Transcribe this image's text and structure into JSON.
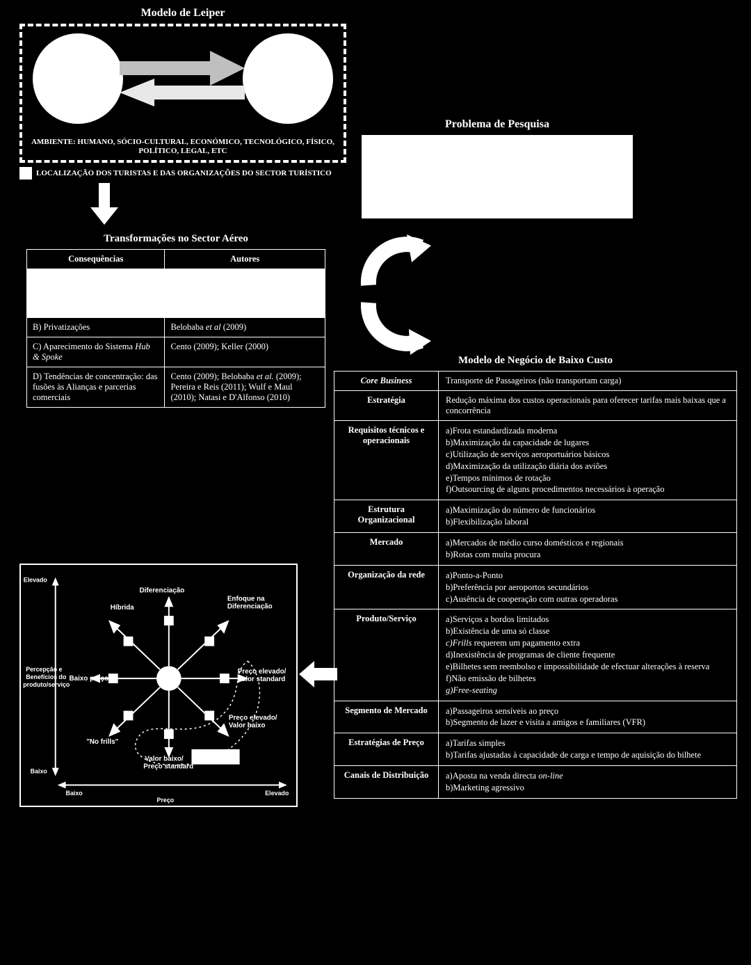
{
  "leiper": {
    "title": "Modelo de Leiper",
    "env_line1": "AMBIENTE: HUMANO, SÓCIO-CULTURAL, ECONÓMICO, TECNOLÓGICO, FÍSICO,",
    "env_line2": "POLÍTICO, LEGAL, ETC",
    "loc_text": "LOCALIZAÇÃO DOS TURISTAS E DAS ORGANIZAÇÕES DO SECTOR TURÍSTICO",
    "circle_color": "#ffffff",
    "border_style": "dashed"
  },
  "problema": {
    "title": "Problema de Pesquisa"
  },
  "transf": {
    "title": "Transformações no Sector Aéreo",
    "col1": "Consequências",
    "col2": "Autores",
    "rows": [
      {
        "c": "B) Privatizações",
        "a": "Belobaba et al (2009)"
      },
      {
        "c": "C) Aparecimento do Sistema Hub & Spoke",
        "a": "Cento (2009); Keller (2000)"
      },
      {
        "c": "D) Tendências de concentração: das fusões às Alianças e parcerias comerciais",
        "a": "Cento (2009); Belobaba et al. (2009); Pereira e Reis (2011); Wulf e Maul (2010); Natasi e D'Alfonso (2010)"
      }
    ]
  },
  "neg": {
    "title": "Modelo de Negócio de Baixo Custo",
    "rows": [
      {
        "label": "Core Business",
        "label_italic": true,
        "text": "Transporte de Passageiros (não transportam carga)"
      },
      {
        "label": "Estratégia",
        "text": "Redução máxima dos custos operacionais para oferecer tarifas mais baixas que a concorrência"
      },
      {
        "label": "Requisitos técnicos e operacionais",
        "items": [
          "a)Frota estandardizada moderna",
          "b)Maximização da capacidade de lugares",
          "c)Utilização de serviços aeroportuários básicos",
          "d)Maximização da utilização diária dos aviões",
          "e)Tempos mínimos de rotação",
          "f)Outsourcing de alguns procedimentos necessários à operação"
        ]
      },
      {
        "label": "Estrutura Organizacional",
        "items": [
          "a)Maximização do número de funcionários",
          "b)Flexibilização laboral"
        ]
      },
      {
        "label": "Mercado",
        "items": [
          "a)Mercados de médio curso domésticos e regionais",
          "b)Rotas com muita procura"
        ]
      },
      {
        "label": "Organização da rede",
        "items": [
          "a)Ponto-a-Ponto",
          "b)Preferência por aeroportos secundários",
          "c)Ausência de cooperação com outras operadoras"
        ]
      },
      {
        "label": "Produto/Serviço",
        "items_html": [
          "a)Serviços a bordos limitados",
          "b)Existência de uma só classe",
          "<span class='ital'>c)Frills</span> requerem um pagamento extra",
          "d)Inexistência de programas de cliente frequente",
          "e)Bilhetes sem reembolso e impossibilidade de efectuar alterações à reserva",
          "f)Não emissão de bilhetes",
          "<span class='ital'>g)Free-seating</span>"
        ]
      },
      {
        "label": "Segmento de Mercado",
        "items": [
          "a)Passageiros sensíveis ao preço",
          "b)Segmento de lazer e visita a amigos e familiares (VFR)"
        ]
      },
      {
        "label": "Estratégias de Preço",
        "items": [
          "a)Tarifas simples",
          "b)Tarifas ajustadas à capacidade de carga e tempo de aquisição do bilhete"
        ]
      },
      {
        "label": "Canais de Distribuição",
        "items_html": [
          "a)Aposta na venda directa <span class='ital'>on-line</span>",
          "b)Marketing agressivo"
        ]
      }
    ]
  },
  "clock": {
    "y_axis_top": "Elevado",
    "y_axis_bottom": "Baixo",
    "y_axis_label1": "Percepção e",
    "y_axis_label2": "Benefícios do",
    "y_axis_label3": "produto/serviço",
    "x_axis_left": "Baixo",
    "x_axis_right": "Elevado",
    "x_axis_label": "Preço",
    "labels": {
      "hibrida": "Híbrida",
      "diferenciacao": "Diferenciação",
      "enfoque1": "Enfoque na",
      "enfoque2": "Diferenciação",
      "baixo_preco": "Baixo preço",
      "preco_elev1": "Preço elevado/",
      "valor_std": "Valor standard",
      "no_frills": "\"No frills\"",
      "valor_baixo1": "Valor baixo/",
      "preco_std": "Preço standard",
      "preco_elev2": "Preço elevado/",
      "valor_baixo2": "Valor baixo"
    },
    "colors": {
      "line": "#ffffff",
      "bg": "#000000",
      "box": "#ffffff"
    }
  }
}
